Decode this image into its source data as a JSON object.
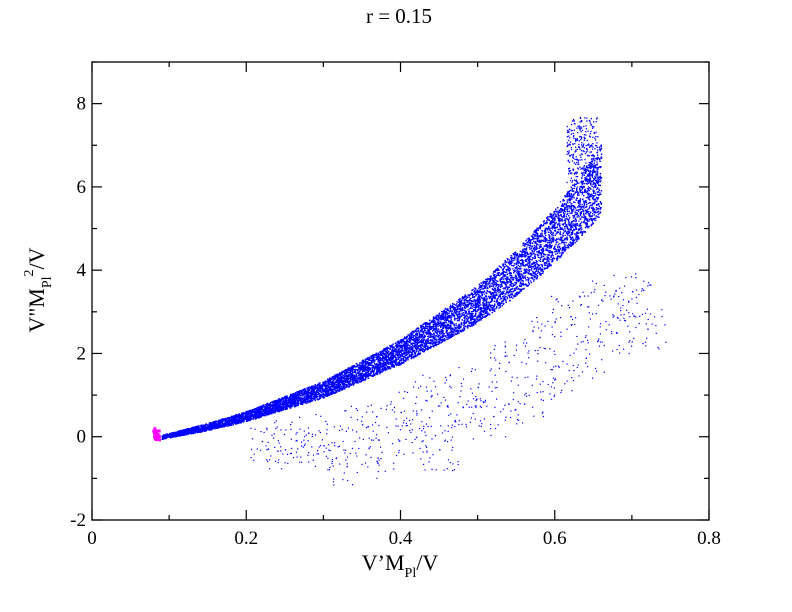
{
  "chart_data": {
    "type": "scatter",
    "title": "r = 0.15",
    "xlabel": {
      "main": "V’M",
      "sub": "Pl",
      "tail": "/V"
    },
    "ylabel": {
      "main": "V\"M",
      "sub": "Pl",
      "sup": "2",
      "tail": "/V"
    },
    "xlim": [
      0,
      0.8
    ],
    "ylim": [
      -2,
      9
    ],
    "xticks": [
      "0",
      "0.2",
      "0.4",
      "0.6",
      "0.8"
    ],
    "yticks": [
      "-2",
      "0",
      "2",
      "4",
      "6",
      "8"
    ],
    "grid": false,
    "legend": "none",
    "colors": {
      "main": "#0000ff",
      "highlight": "#ff00ff",
      "axes": "#000000"
    },
    "series": [
      {
        "color": "#0000ff",
        "dense_band": {
          "x_range": [
            0.09,
            0.66
          ],
          "center_curve": [
            [
              0.09,
              0.0
            ],
            [
              0.15,
              0.25
            ],
            [
              0.2,
              0.5
            ],
            [
              0.3,
              1.15
            ],
            [
              0.4,
              2.05
            ],
            [
              0.5,
              3.2
            ],
            [
              0.55,
              3.95
            ],
            [
              0.6,
              4.85
            ],
            [
              0.63,
              5.5
            ],
            [
              0.66,
              6.2
            ]
          ],
          "half_width": [
            [
              0.09,
              0.05
            ],
            [
              0.2,
              0.12
            ],
            [
              0.3,
              0.2
            ],
            [
              0.4,
              0.3
            ],
            [
              0.5,
              0.45
            ],
            [
              0.6,
              0.65
            ],
            [
              0.66,
              0.85
            ]
          ],
          "tip": [
            0.655,
            7.7
          ]
        },
        "sparse_cloud": {
          "points": [
            [
              0.22,
              -0.1
            ],
            [
              0.25,
              -0.3
            ],
            [
              0.28,
              0.1
            ],
            [
              0.3,
              -0.2
            ],
            [
              0.33,
              -0.7
            ],
            [
              0.35,
              0.3
            ],
            [
              0.37,
              -0.5
            ],
            [
              0.4,
              0.6
            ],
            [
              0.42,
              0.0
            ],
            [
              0.44,
              1.0
            ],
            [
              0.45,
              -0.3
            ],
            [
              0.47,
              0.4
            ],
            [
              0.5,
              1.2
            ],
            [
              0.52,
              0.5
            ],
            [
              0.54,
              1.8
            ],
            [
              0.56,
              0.8
            ],
            [
              0.58,
              2.4
            ],
            [
              0.6,
              1.4
            ],
            [
              0.62,
              2.9
            ],
            [
              0.64,
              1.9
            ],
            [
              0.66,
              3.3
            ],
            [
              0.68,
              2.5
            ],
            [
              0.7,
              3.5
            ],
            [
              0.72,
              2.6
            ]
          ]
        }
      },
      {
        "color": "#ff00ff",
        "points": [
          [
            0.082,
            0.15
          ],
          [
            0.083,
            0.05
          ],
          [
            0.084,
            -0.05
          ],
          [
            0.085,
            0.1
          ],
          [
            0.086,
            -0.02
          ]
        ]
      }
    ]
  }
}
